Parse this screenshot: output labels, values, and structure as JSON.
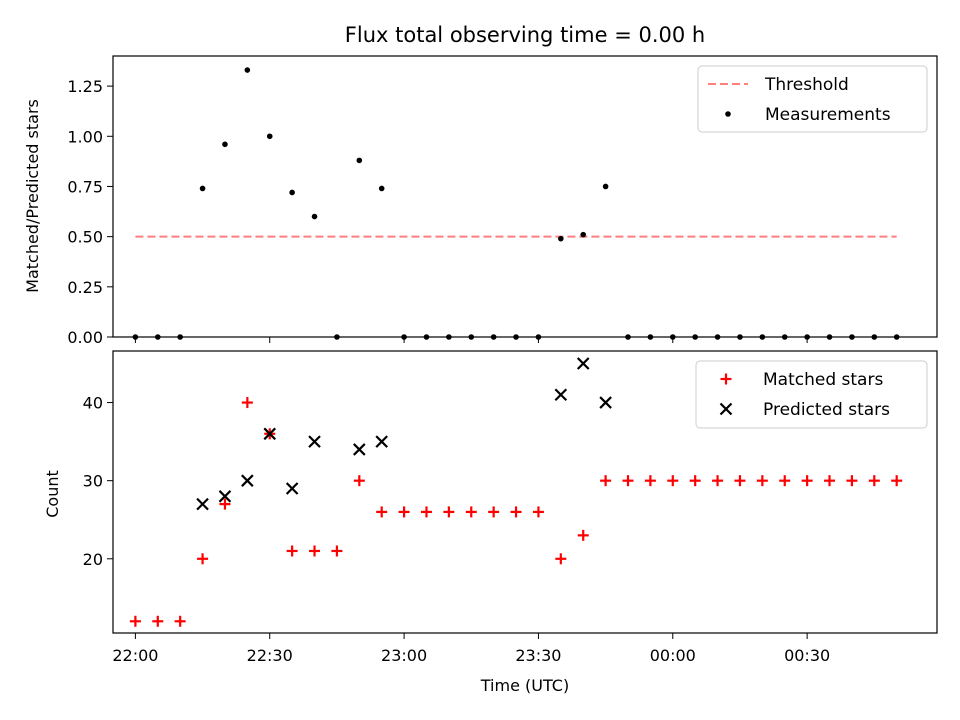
{
  "chart_data": [
    {
      "type": "scatter",
      "title": "Flux total observing time = 0.00 h",
      "xlabel": "",
      "ylabel": "Matched/Predicted stars",
      "xlim": [
        "21:55",
        "00:59"
      ],
      "ylim": [
        0,
        1.4
      ],
      "yticks": [
        "0.00",
        "0.25",
        "0.50",
        "0.75",
        "1.00",
        "1.25"
      ],
      "grid": false,
      "legend_position": "top-right",
      "threshold": {
        "name": "Threshold",
        "value": 0.5,
        "x_start": "22:00",
        "x_end": "00:50",
        "color": "#ff7f7f"
      },
      "series": [
        {
          "name": "Measurements",
          "color": "#000000",
          "x": [
            "22:00",
            "22:05",
            "22:10",
            "22:15",
            "22:20",
            "22:25",
            "22:30",
            "22:35",
            "22:40",
            "22:45",
            "22:50",
            "22:55",
            "23:00",
            "23:05",
            "23:10",
            "23:15",
            "23:20",
            "23:25",
            "23:30",
            "23:35",
            "23:40",
            "23:45",
            "23:50",
            "23:55",
            "00:00",
            "00:05",
            "00:10",
            "00:15",
            "00:20",
            "00:25",
            "00:30",
            "00:35",
            "00:40",
            "00:45",
            "00:50"
          ],
          "values": [
            0,
            0,
            0,
            0.74,
            0.96,
            1.33,
            1.0,
            0.72,
            0.6,
            0,
            0.88,
            0.74,
            0,
            0,
            0,
            0,
            0,
            0,
            0,
            0.49,
            0.51,
            0.75,
            0,
            0,
            0,
            0,
            0,
            0,
            0,
            0,
            0,
            0,
            0,
            0,
            0
          ]
        }
      ]
    },
    {
      "type": "scatter",
      "title": "",
      "xlabel": "Time (UTC)",
      "ylabel": "Count",
      "xlim": [
        "21:55",
        "00:59"
      ],
      "ylim": [
        10.5,
        46.6
      ],
      "yticks": [
        "20",
        "30",
        "40"
      ],
      "xticks": [
        "22:00",
        "22:30",
        "23:00",
        "23:30",
        "00:00",
        "00:30"
      ],
      "grid": false,
      "legend_position": "top-right",
      "series": [
        {
          "name": "Matched stars",
          "marker": "plus",
          "color": "#ff0000",
          "x": [
            "22:00",
            "22:05",
            "22:10",
            "22:15",
            "22:20",
            "22:25",
            "22:30",
            "22:35",
            "22:40",
            "22:45",
            "22:50",
            "22:55",
            "23:00",
            "23:05",
            "23:10",
            "23:15",
            "23:20",
            "23:25",
            "23:30",
            "23:35",
            "23:40",
            "23:45",
            "23:50",
            "23:55",
            "00:00",
            "00:05",
            "00:10",
            "00:15",
            "00:20",
            "00:25",
            "00:30",
            "00:35",
            "00:40",
            "00:45",
            "00:50"
          ],
          "values": [
            12,
            12,
            12,
            20,
            27,
            40,
            36,
            21,
            21,
            21,
            30,
            26,
            26,
            26,
            26,
            26,
            26,
            26,
            26,
            20,
            23,
            30,
            30,
            30,
            30,
            30,
            30,
            30,
            30,
            30,
            30,
            30,
            30,
            30,
            30
          ]
        },
        {
          "name": "Predicted stars",
          "marker": "x",
          "color": "#000000",
          "x": [
            "22:15",
            "22:20",
            "22:25",
            "22:30",
            "22:35",
            "22:40",
            "22:50",
            "22:55",
            "23:35",
            "23:40",
            "23:45"
          ],
          "values": [
            27,
            28,
            30,
            36,
            29,
            35,
            34,
            35,
            41,
            45,
            40
          ]
        }
      ]
    }
  ]
}
